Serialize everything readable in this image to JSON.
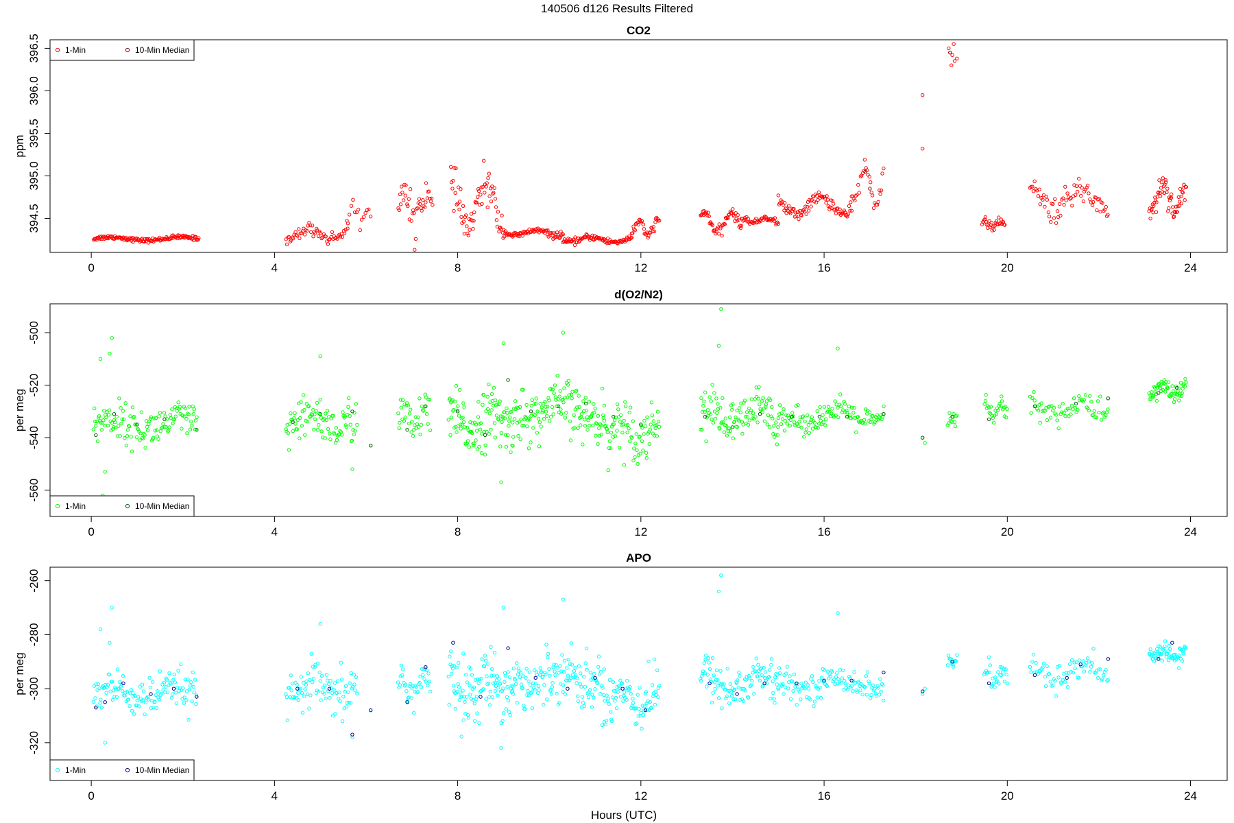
{
  "figure": {
    "title": "140506   d126   Results Filtered",
    "xlabel": "Hours (UTC)"
  },
  "chart_data": [
    {
      "type": "scatter",
      "title": "CO2",
      "xlabel": "",
      "ylabel": "ppm",
      "xlim": [
        -0.9,
        24.8
      ],
      "ylim": [
        394.1,
        396.6
      ],
      "xticks": [
        "0",
        "4",
        "8",
        "12",
        "16",
        "20",
        "24"
      ],
      "yticks": [
        "394.5",
        "395.0",
        "395.5",
        "396.0",
        "396.5"
      ],
      "legend": {
        "position": "top-left",
        "entries": [
          "1-Min",
          "10-Min Median"
        ]
      },
      "colors": {
        "one_min": "#ff0000",
        "median": "#8b0000"
      },
      "series": [
        {
          "name": "1-Min",
          "segments": [
            {
              "x0": 0.05,
              "x1": 2.35,
              "base": 394.26,
              "amp": 0.02,
              "noise": 0.02,
              "n": 140
            },
            {
              "x0": 4.25,
              "x1": 5.6,
              "base": 394.32,
              "amp": 0.06,
              "noise": 0.06,
              "n": 60
            },
            {
              "x0": 5.6,
              "x1": 6.1,
              "base": 394.55,
              "amp": 0.12,
              "noise": 0.1,
              "n": 14
            },
            {
              "x0": 6.7,
              "x1": 7.45,
              "base": 394.65,
              "amp": 0.15,
              "noise": 0.18,
              "n": 40
            },
            {
              "x0": 7.85,
              "x1": 9.0,
              "base": 394.65,
              "amp": 0.25,
              "noise": 0.18,
              "n": 70
            },
            {
              "x0": 9.0,
              "x1": 10.3,
              "base": 394.33,
              "amp": 0.03,
              "noise": 0.03,
              "n": 80
            },
            {
              "x0": 10.3,
              "x1": 11.8,
              "base": 394.25,
              "amp": 0.03,
              "noise": 0.03,
              "n": 90
            },
            {
              "x0": 11.8,
              "x1": 12.4,
              "base": 394.38,
              "amp": 0.08,
              "noise": 0.05,
              "n": 35
            },
            {
              "x0": 13.3,
              "x1": 14.2,
              "base": 394.45,
              "amp": 0.12,
              "noise": 0.05,
              "n": 55
            },
            {
              "x0": 14.2,
              "x1": 15.0,
              "base": 394.48,
              "amp": 0.03,
              "noise": 0.03,
              "n": 45
            },
            {
              "x0": 15.0,
              "x1": 16.6,
              "base": 394.65,
              "amp": 0.1,
              "noise": 0.06,
              "n": 90
            },
            {
              "x0": 16.6,
              "x1": 17.3,
              "base": 394.9,
              "amp": 0.2,
              "noise": 0.1,
              "n": 30
            },
            {
              "x0": 19.45,
              "x1": 19.95,
              "base": 394.43,
              "amp": 0.03,
              "noise": 0.04,
              "n": 30
            },
            {
              "x0": 20.5,
              "x1": 22.2,
              "base": 394.72,
              "amp": 0.12,
              "noise": 0.13,
              "n": 70
            },
            {
              "x0": 23.1,
              "x1": 23.9,
              "base": 394.75,
              "amp": 0.15,
              "noise": 0.13,
              "n": 60
            }
          ],
          "points": [
            [
              18.15,
              395.32
            ],
            [
              18.15,
              395.95
            ],
            [
              18.72,
              396.5
            ],
            [
              18.75,
              396.45
            ],
            [
              18.8,
              396.42
            ],
            [
              18.85,
              396.35
            ],
            [
              18.9,
              396.38
            ],
            [
              18.78,
              396.3
            ],
            [
              18.83,
              396.55
            ]
          ]
        },
        {
          "name": "10-Min Median",
          "points": [
            [
              16.9,
              395.05
            ],
            [
              17.0,
              394.85
            ],
            [
              18.75,
              396.45
            ]
          ]
        }
      ]
    },
    {
      "type": "scatter",
      "title": "d(O2/N2)",
      "xlabel": "",
      "ylabel": "per meg",
      "xlim": [
        -0.9,
        24.8
      ],
      "ylim": [
        -570,
        -489
      ],
      "xticks": [
        "0",
        "4",
        "8",
        "12",
        "16",
        "20",
        "24"
      ],
      "yticks": [
        "-560",
        "-540",
        "-520",
        "-500"
      ],
      "legend": {
        "position": "bottom-left",
        "entries": [
          "1-Min",
          "10-Min Median"
        ]
      },
      "colors": {
        "one_min": "#00ff00",
        "median": "#006400"
      },
      "series": [
        {
          "name": "1-Min",
          "segments": [
            {
              "x0": 0.05,
              "x1": 2.3,
              "base": -535,
              "amp": 2,
              "noise": 6,
              "n": 130
            },
            {
              "x0": 4.25,
              "x1": 5.8,
              "base": -534,
              "amp": 3,
              "noise": 7,
              "n": 90
            },
            {
              "x0": 6.7,
              "x1": 7.4,
              "base": -533,
              "amp": 3,
              "noise": 7,
              "n": 40
            },
            {
              "x0": 7.8,
              "x1": 9.2,
              "base": -534,
              "amp": 3,
              "noise": 9,
              "n": 110
            },
            {
              "x0": 9.2,
              "x1": 11.2,
              "base": -530,
              "amp": 3,
              "noise": 8,
              "n": 140
            },
            {
              "x0": 11.2,
              "x1": 12.4,
              "base": -537,
              "amp": 3,
              "noise": 8,
              "n": 80
            },
            {
              "x0": 13.3,
              "x1": 15.0,
              "base": -532,
              "amp": 3,
              "noise": 7,
              "n": 110
            },
            {
              "x0": 15.0,
              "x1": 17.3,
              "base": -532,
              "amp": 2,
              "noise": 4,
              "n": 120
            },
            {
              "x0": 18.7,
              "x1": 18.9,
              "base": -533,
              "amp": 1,
              "noise": 3,
              "n": 12
            },
            {
              "x0": 19.5,
              "x1": 20.0,
              "base": -530,
              "amp": 2,
              "noise": 4,
              "n": 28
            },
            {
              "x0": 20.5,
              "x1": 22.2,
              "base": -529,
              "amp": 2,
              "noise": 4,
              "n": 70
            },
            {
              "x0": 23.1,
              "x1": 23.9,
              "base": -522,
              "amp": 2,
              "noise": 3,
              "n": 60
            }
          ],
          "points": [
            [
              0.2,
              -510
            ],
            [
              0.4,
              -508
            ],
            [
              0.45,
              -502
            ],
            [
              0.25,
              -562
            ],
            [
              0.3,
              -553
            ],
            [
              5.0,
              -509
            ],
            [
              5.7,
              -552
            ],
            [
              6.1,
              -543
            ],
            [
              8.95,
              -557
            ],
            [
              9.0,
              -504
            ],
            [
              10.3,
              -500
            ],
            [
              13.75,
              -491
            ],
            [
              13.7,
              -505
            ],
            [
              16.3,
              -506
            ],
            [
              18.15,
              -540
            ],
            [
              18.2,
              -542
            ]
          ]
        },
        {
          "name": "10-Min Median",
          "points": [
            [
              0.1,
              -539
            ],
            [
              0.5,
              -531
            ],
            [
              1.0,
              -535
            ],
            [
              1.6,
              -533
            ],
            [
              2.3,
              -537
            ],
            [
              4.4,
              -534
            ],
            [
              5.0,
              -531
            ],
            [
              5.7,
              -530
            ],
            [
              6.1,
              -543
            ],
            [
              6.9,
              -537
            ],
            [
              7.3,
              -528
            ],
            [
              8.0,
              -530
            ],
            [
              8.6,
              -539
            ],
            [
              9.1,
              -518
            ],
            [
              9.6,
              -530
            ],
            [
              10.2,
              -528
            ],
            [
              10.8,
              -527
            ],
            [
              11.4,
              -532
            ],
            [
              12.0,
              -535
            ],
            [
              13.4,
              -532
            ],
            [
              14.0,
              -536
            ],
            [
              14.6,
              -531
            ],
            [
              15.3,
              -532
            ],
            [
              15.9,
              -532
            ],
            [
              16.5,
              -532
            ],
            [
              17.3,
              -531
            ],
            [
              18.15,
              -540
            ],
            [
              18.8,
              -532
            ],
            [
              19.6,
              -533
            ],
            [
              20.6,
              -528
            ],
            [
              21.5,
              -527
            ],
            [
              22.2,
              -525
            ],
            [
              23.3,
              -523
            ],
            [
              23.7,
              -521
            ]
          ]
        }
      ]
    },
    {
      "type": "scatter",
      "title": "APO",
      "xlabel": "Hours (UTC)",
      "ylabel": "per meg",
      "xlim": [
        -0.9,
        24.8
      ],
      "ylim": [
        -334,
        -255
      ],
      "xticks": [
        "0",
        "4",
        "8",
        "12",
        "16",
        "20",
        "24"
      ],
      "yticks": [
        "-320",
        "-300",
        "-280",
        "-260"
      ],
      "legend": {
        "position": "bottom-left",
        "entries": [
          "1-Min",
          "10-Min Median"
        ]
      },
      "colors": {
        "one_min": "#00ffff",
        "median": "#00008b"
      },
      "series": [
        {
          "name": "1-Min",
          "segments": [
            {
              "x0": 0.05,
              "x1": 2.3,
              "base": -302,
              "amp": 2,
              "noise": 6,
              "n": 130
            },
            {
              "x0": 4.25,
              "x1": 5.8,
              "base": -301,
              "amp": 3,
              "noise": 7,
              "n": 90
            },
            {
              "x0": 6.7,
              "x1": 7.4,
              "base": -299,
              "amp": 3,
              "noise": 7,
              "n": 40
            },
            {
              "x0": 7.8,
              "x1": 9.2,
              "base": -299,
              "amp": 3,
              "noise": 9,
              "n": 110
            },
            {
              "x0": 9.2,
              "x1": 11.2,
              "base": -296,
              "amp": 3,
              "noise": 8,
              "n": 140
            },
            {
              "x0": 11.2,
              "x1": 12.4,
              "base": -303,
              "amp": 3,
              "noise": 8,
              "n": 80
            },
            {
              "x0": 13.3,
              "x1": 15.0,
              "base": -298,
              "amp": 3,
              "noise": 7,
              "n": 110
            },
            {
              "x0": 15.0,
              "x1": 17.3,
              "base": -298,
              "amp": 2,
              "noise": 4,
              "n": 120
            },
            {
              "x0": 18.7,
              "x1": 18.9,
              "base": -290,
              "amp": 1,
              "noise": 2,
              "n": 12
            },
            {
              "x0": 19.5,
              "x1": 20.0,
              "base": -296,
              "amp": 2,
              "noise": 4,
              "n": 28
            },
            {
              "x0": 20.5,
              "x1": 22.2,
              "base": -294,
              "amp": 2,
              "noise": 4,
              "n": 70
            },
            {
              "x0": 23.1,
              "x1": 23.9,
              "base": -287,
              "amp": 2,
              "noise": 3,
              "n": 60
            }
          ],
          "points": [
            [
              0.2,
              -278
            ],
            [
              0.4,
              -283
            ],
            [
              0.45,
              -270
            ],
            [
              0.25,
              -329
            ],
            [
              0.3,
              -320
            ],
            [
              5.0,
              -276
            ],
            [
              5.7,
              -318
            ],
            [
              6.1,
              -308
            ],
            [
              8.95,
              -322
            ],
            [
              9.0,
              -270
            ],
            [
              10.3,
              -267
            ],
            [
              13.75,
              -258
            ],
            [
              13.7,
              -264
            ],
            [
              16.3,
              -272
            ],
            [
              18.15,
              -302
            ],
            [
              18.2,
              -300
            ]
          ]
        },
        {
          "name": "10-Min Median",
          "points": [
            [
              0.1,
              -307
            ],
            [
              0.3,
              -305
            ],
            [
              0.7,
              -298
            ],
            [
              1.3,
              -302
            ],
            [
              1.8,
              -300
            ],
            [
              2.3,
              -303
            ],
            [
              4.5,
              -300
            ],
            [
              5.2,
              -300
            ],
            [
              5.7,
              -317
            ],
            [
              6.1,
              -308
            ],
            [
              6.9,
              -305
            ],
            [
              7.3,
              -292
            ],
            [
              7.9,
              -283
            ],
            [
              8.5,
              -303
            ],
            [
              9.1,
              -285
            ],
            [
              9.7,
              -296
            ],
            [
              10.4,
              -300
            ],
            [
              11.0,
              -296
            ],
            [
              11.6,
              -300
            ],
            [
              12.1,
              -308
            ],
            [
              13.5,
              -298
            ],
            [
              14.1,
              -302
            ],
            [
              14.7,
              -298
            ],
            [
              15.4,
              -298
            ],
            [
              16.0,
              -297
            ],
            [
              16.6,
              -297
            ],
            [
              17.3,
              -294
            ],
            [
              18.15,
              -301
            ],
            [
              18.8,
              -290
            ],
            [
              19.6,
              -298
            ],
            [
              20.6,
              -295
            ],
            [
              21.3,
              -296
            ],
            [
              21.6,
              -291
            ],
            [
              22.2,
              -289
            ],
            [
              23.3,
              -289
            ],
            [
              23.6,
              -283
            ]
          ]
        }
      ]
    }
  ]
}
